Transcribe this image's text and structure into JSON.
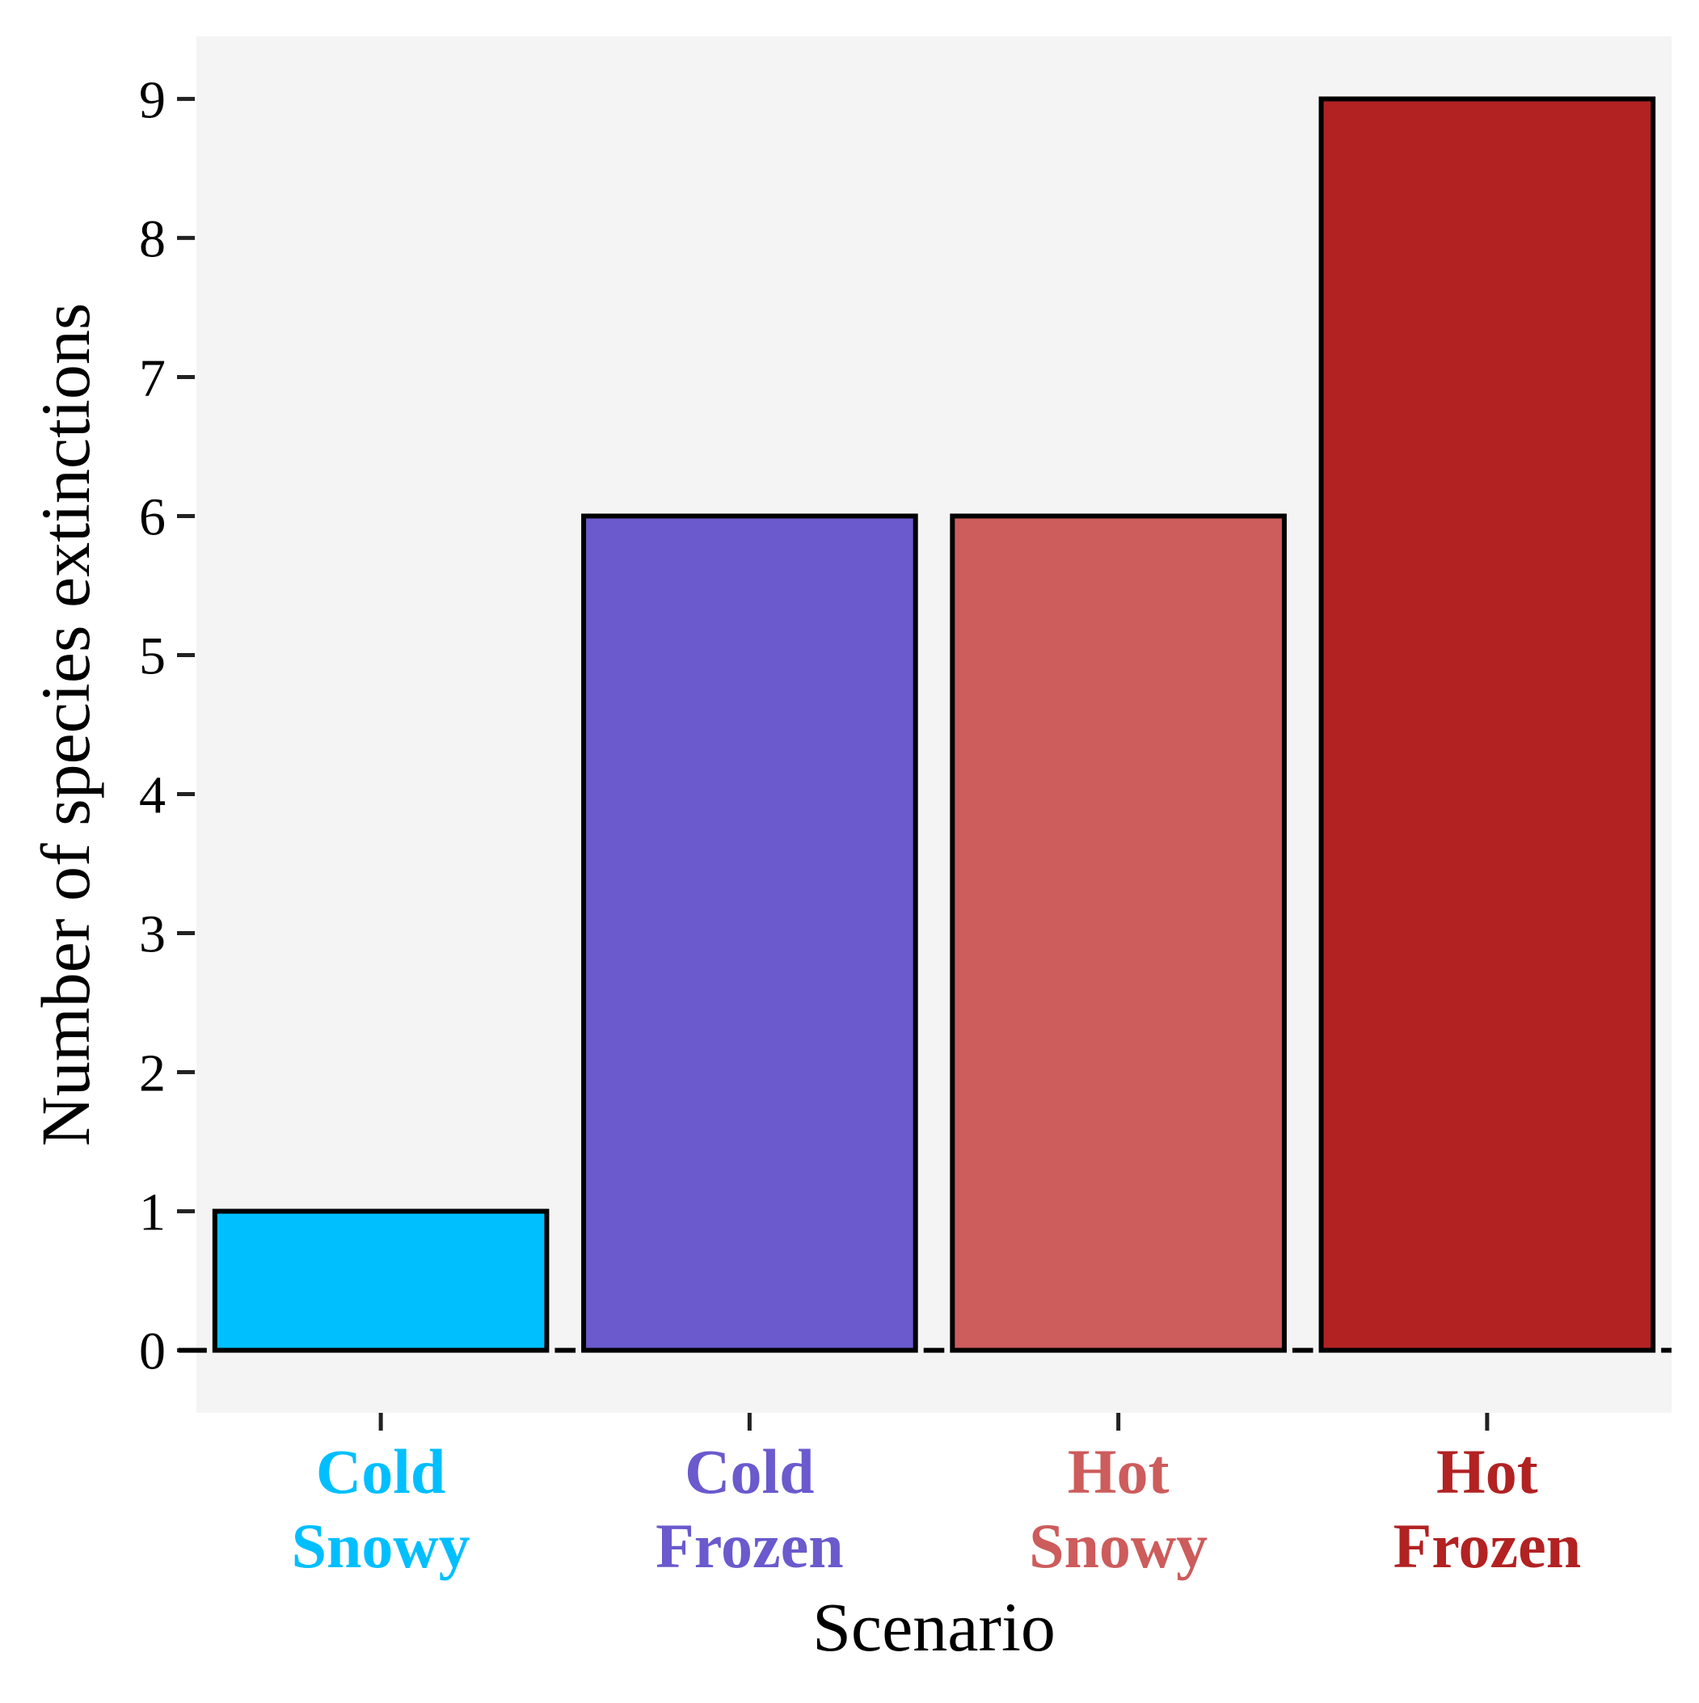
{
  "chart_data": {
    "type": "bar",
    "categories": [
      "Cold\nSnowy",
      "Cold\nFrozen",
      "Hot\nSnowy",
      "Hot\nFrozen"
    ],
    "category_lines": [
      [
        "Cold",
        "Snowy"
      ],
      [
        "Cold",
        "Frozen"
      ],
      [
        "Hot",
        "Snowy"
      ],
      [
        "Hot",
        "Frozen"
      ]
    ],
    "values": [
      1,
      6,
      6,
      9
    ],
    "colors": [
      "#00BFFF",
      "#6A5ACD",
      "#CD5C5C",
      "#B22222"
    ],
    "xlabel": "Scenario",
    "ylabel": "Number of species extinctions",
    "ylim": [
      -0.45,
      9.45
    ],
    "yticks": [
      0,
      1,
      2,
      3,
      4,
      5,
      6,
      7,
      8,
      9
    ],
    "panel_background": "#F4F4F4",
    "bar_outline": "#000000",
    "grid": false,
    "legend": "none"
  }
}
